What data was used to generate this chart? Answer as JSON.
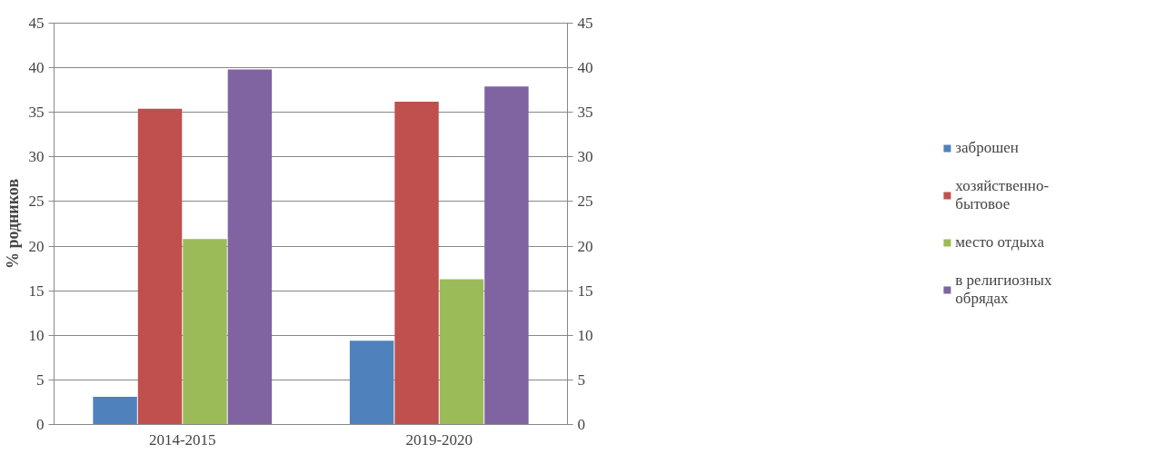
{
  "chart_data": {
    "type": "bar",
    "ylabel": "% родников",
    "categories": [
      "2014-2015",
      "2019-2020"
    ],
    "series": [
      {
        "name": "заброшен",
        "color": "#4f81bd",
        "values": [
          3.1,
          9.4
        ]
      },
      {
        "name": "хозяйственно-бытовое",
        "color": "#c0504d",
        "values": [
          35.4,
          36.2
        ]
      },
      {
        "name": "место отдыха",
        "color": "#9bbb59",
        "values": [
          20.8,
          16.3
        ]
      },
      {
        "name": "в религиозных обрядах",
        "color": "#8064a2",
        "values": [
          39.8,
          37.9
        ]
      }
    ],
    "ylim": [
      0,
      45
    ],
    "yticks": [
      0,
      5,
      10,
      15,
      20,
      25,
      30,
      35,
      40,
      45
    ],
    "y2lim": [
      0,
      45
    ],
    "y2ticks": [
      0,
      5,
      10,
      15,
      20,
      25,
      30,
      35,
      40,
      45
    ],
    "grid": "y",
    "legend": "right"
  }
}
